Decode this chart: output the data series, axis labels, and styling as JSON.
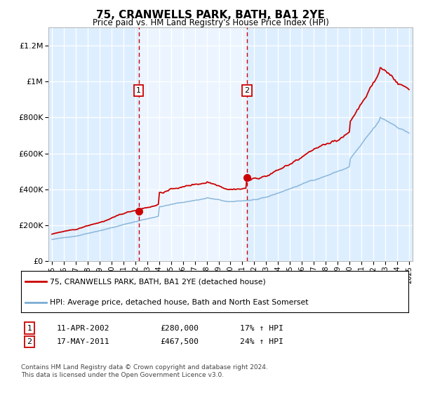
{
  "title": "75, CRANWELLS PARK, BATH, BA1 2YE",
  "subtitle": "Price paid vs. HM Land Registry's House Price Index (HPI)",
  "ylim": [
    0,
    1300000
  ],
  "yticks": [
    0,
    200000,
    400000,
    600000,
    800000,
    1000000,
    1200000
  ],
  "bg_color": "#ddeeff",
  "shade_color": "#e8f2fd",
  "red_color": "#cc0000",
  "blue_color": "#7aadd4",
  "dashed_color": "#cc0000",
  "purchase1_year": 2002.28,
  "purchase1_price": 280000,
  "purchase1_date": "11-APR-2002",
  "purchase1_hpi": "17% ↑ HPI",
  "purchase2_year": 2011.38,
  "purchase2_price": 467500,
  "purchase2_date": "17-MAY-2011",
  "purchase2_hpi": "24% ↑ HPI",
  "legend_line1": "75, CRANWELLS PARK, BATH, BA1 2YE (detached house)",
  "legend_line2": "HPI: Average price, detached house, Bath and North East Somerset",
  "footnote": "Contains HM Land Registry data © Crown copyright and database right 2024.\nThis data is licensed under the Open Government Licence v3.0.",
  "xmin": 1995,
  "xmax": 2025
}
